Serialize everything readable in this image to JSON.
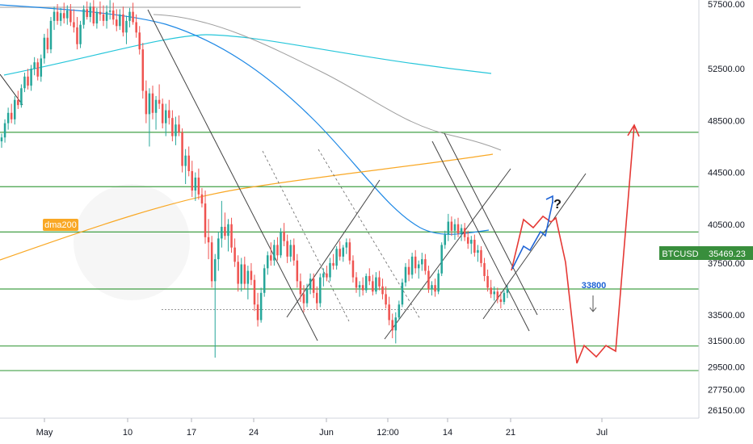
{
  "chart_data": {
    "type": "candlestick",
    "symbol": "BTCUSD",
    "last_price": 35469.23,
    "last_price_label": "35469.23",
    "ylim": [
      25200,
      58300
    ],
    "y_ticks": [
      "57500.00",
      "52500.00",
      "48500.00",
      "44500.00",
      "40500.00",
      "37500.00",
      "33500.00",
      "31500.00",
      "29500.00",
      "27750.00",
      "26150.00"
    ],
    "x_ticks": [
      "May",
      "10",
      "17",
      "24",
      "Jun",
      "12:00",
      "14",
      "21",
      "Jul"
    ],
    "horizontal_levels": [
      47600,
      43400,
      39900,
      35500,
      31100,
      29200
    ],
    "dotted_level": 33900,
    "annotations": {
      "dma_label": "dma200",
      "target_label": "33800",
      "question_mark": "?"
    },
    "colors": {
      "up": "#26a69a",
      "down": "#ef5350",
      "levels": "#43a047",
      "price_badge": "#388e3c",
      "dma200": "#f9a825",
      "ma_blue": "#1e88e5",
      "ma_cyan": "#26c6da",
      "ma_gray": "#9e9e9e",
      "scenario_red": "#e53935",
      "scenario_blue": "#1e63d6"
    },
    "candles": [
      [
        46900,
        47500,
        46400,
        47200
      ],
      [
        47200,
        48600,
        46800,
        48300
      ],
      [
        48300,
        49500,
        47800,
        49100
      ],
      [
        49100,
        49800,
        48300,
        48600
      ],
      [
        48600,
        50400,
        48200,
        50100
      ],
      [
        50100,
        50800,
        49400,
        49700
      ],
      [
        49700,
        51300,
        49500,
        51000
      ],
      [
        51000,
        52200,
        50700,
        51900
      ],
      [
        51900,
        52500,
        50900,
        51200
      ],
      [
        51200,
        52800,
        50800,
        52500
      ],
      [
        52500,
        53400,
        52000,
        53000
      ],
      [
        53000,
        53300,
        51600,
        51900
      ],
      [
        51900,
        53600,
        51500,
        53300
      ],
      [
        53300,
        55200,
        52900,
        54900
      ],
      [
        54900,
        55600,
        53700,
        54000
      ],
      [
        54000,
        56500,
        53700,
        56200
      ],
      [
        56200,
        57300,
        55500,
        56900
      ],
      [
        56900,
        57500,
        55900,
        56200
      ],
      [
        56200,
        57200,
        55800,
        56800
      ],
      [
        56800,
        57600,
        56000,
        56400
      ],
      [
        56400,
        57400,
        55900,
        57000
      ],
      [
        57000,
        57500,
        55800,
        56100
      ],
      [
        56100,
        57100,
        55300,
        55700
      ],
      [
        55700,
        56500,
        54000,
        54400
      ],
      [
        54400,
        56200,
        54100,
        55900
      ],
      [
        55900,
        57400,
        55600,
        57100
      ],
      [
        57100,
        57700,
        56300,
        56500
      ],
      [
        56500,
        57600,
        56100,
        57300
      ],
      [
        57300,
        57800,
        55800,
        56000
      ],
      [
        56000,
        57200,
        55600,
        56900
      ],
      [
        56900,
        57700,
        56200,
        56700
      ],
      [
        56700,
        57400,
        55800,
        56200
      ],
      [
        56200,
        57400,
        55600,
        56900
      ],
      [
        56900,
        57800,
        56300,
        57000
      ],
      [
        57000,
        57600,
        55900,
        56300
      ],
      [
        56300,
        57100,
        55400,
        55800
      ],
      [
        55800,
        57100,
        55500,
        56700
      ],
      [
        56700,
        57300,
        55000,
        55300
      ],
      [
        55300,
        56600,
        54400,
        56200
      ],
      [
        56200,
        57200,
        55700,
        56900
      ],
      [
        56900,
        57600,
        55900,
        56100
      ],
      [
        56100,
        56700,
        54900,
        55300
      ],
      [
        55300,
        55800,
        53600,
        54000
      ],
      [
        54000,
        54500,
        50200,
        50800
      ],
      [
        50800,
        51600,
        48300,
        49000
      ],
      [
        49000,
        51000,
        46500,
        50600
      ],
      [
        50600,
        51200,
        48600,
        49100
      ],
      [
        49100,
        50400,
        47800,
        50100
      ],
      [
        50100,
        51300,
        49400,
        49800
      ],
      [
        49800,
        50200,
        47900,
        48300
      ],
      [
        48300,
        49800,
        47300,
        49300
      ],
      [
        49300,
        50100,
        48200,
        48700
      ],
      [
        48700,
        49300,
        46900,
        47300
      ],
      [
        47300,
        48800,
        46600,
        48200
      ],
      [
        48200,
        48900,
        47300,
        47600
      ],
      [
        47600,
        47900,
        44500,
        45000
      ],
      [
        45000,
        46300,
        43600,
        45800
      ],
      [
        45800,
        46500,
        44200,
        44600
      ],
      [
        44600,
        45400,
        42600,
        43100
      ],
      [
        43100,
        44500,
        42300,
        44100
      ],
      [
        44100,
        44800,
        42400,
        42800
      ],
      [
        42800,
        43300,
        41800,
        42100
      ],
      [
        42100,
        43100,
        39000,
        39500
      ],
      [
        39500,
        40900,
        37800,
        39100
      ],
      [
        39100,
        39600,
        35600,
        36100
      ],
      [
        36100,
        38200,
        30200,
        37800
      ],
      [
        37800,
        39900,
        36900,
        39400
      ],
      [
        39400,
        42300,
        38700,
        40300
      ],
      [
        40300,
        41400,
        39300,
        39600
      ],
      [
        39600,
        40900,
        38400,
        40500
      ],
      [
        40500,
        41000,
        38300,
        38700
      ],
      [
        38700,
        39400,
        37200,
        37600
      ],
      [
        37600,
        38100,
        35300,
        35900
      ],
      [
        35900,
        37900,
        35300,
        37400
      ],
      [
        37400,
        38000,
        35500,
        35900
      ],
      [
        35900,
        37300,
        34700,
        36900
      ],
      [
        36900,
        37500,
        35800,
        36200
      ],
      [
        36200,
        36600,
        33800,
        34300
      ],
      [
        34300,
        35200,
        32600,
        33100
      ],
      [
        33100,
        35600,
        32900,
        35200
      ],
      [
        35200,
        37400,
        34900,
        37100
      ],
      [
        37100,
        38400,
        36600,
        38100
      ],
      [
        38100,
        39100,
        37300,
        37700
      ],
      [
        37700,
        39300,
        37300,
        38900
      ],
      [
        38900,
        39500,
        37700,
        38100
      ],
      [
        38100,
        40200,
        37900,
        39900
      ],
      [
        39900,
        40600,
        38800,
        39200
      ],
      [
        39200,
        39700,
        37500,
        38000
      ],
      [
        38000,
        39300,
        37600,
        38900
      ],
      [
        38900,
        39400,
        37300,
        37700
      ],
      [
        37700,
        38200,
        35600,
        36100
      ],
      [
        36100,
        36700,
        34500,
        35100
      ],
      [
        35100,
        35800,
        33700,
        34400
      ],
      [
        34400,
        35900,
        34100,
        35500
      ],
      [
        35500,
        36700,
        35100,
        36300
      ],
      [
        36300,
        36700,
        34800,
        35200
      ],
      [
        35200,
        35700,
        33900,
        34400
      ],
      [
        34400,
        36700,
        34100,
        36400
      ],
      [
        36400,
        37100,
        35700,
        36700
      ],
      [
        36700,
        37300,
        36100,
        36400
      ],
      [
        36400,
        37900,
        36100,
        37500
      ],
      [
        37500,
        38200,
        37000,
        37300
      ],
      [
        37300,
        38800,
        37000,
        38600
      ],
      [
        38600,
        39200,
        37700,
        38000
      ],
      [
        38000,
        38900,
        37600,
        38700
      ],
      [
        38700,
        39400,
        38200,
        39100
      ],
      [
        39100,
        39400,
        37400,
        37700
      ],
      [
        37700,
        38100,
        36000,
        36400
      ],
      [
        36400,
        36800,
        35200,
        35600
      ],
      [
        35600,
        36100,
        34900,
        35800
      ],
      [
        35800,
        36400,
        35000,
        35400
      ],
      [
        35400,
        36700,
        35200,
        36500
      ],
      [
        36500,
        37100,
        35800,
        36100
      ],
      [
        36100,
        36600,
        35000,
        35300
      ],
      [
        35300,
        36800,
        35100,
        36400
      ],
      [
        36400,
        36900,
        35400,
        35700
      ],
      [
        35700,
        36300,
        34700,
        35100
      ],
      [
        35100,
        35700,
        34000,
        34300
      ],
      [
        34300,
        34900,
        32700,
        33100
      ],
      [
        33100,
        33600,
        31700,
        32300
      ],
      [
        32300,
        33700,
        31300,
        33300
      ],
      [
        33300,
        34600,
        33100,
        34300
      ],
      [
        34300,
        36300,
        34100,
        36000
      ],
      [
        36000,
        37500,
        35700,
        37200
      ],
      [
        37200,
        37800,
        36100,
        36600
      ],
      [
        36600,
        38300,
        36300,
        38000
      ],
      [
        38000,
        38500,
        36700,
        37100
      ],
      [
        37100,
        37700,
        36300,
        37400
      ],
      [
        37400,
        38300,
        36900,
        37800
      ],
      [
        37800,
        38200,
        36600,
        36900
      ],
      [
        36900,
        37300,
        35200,
        35500
      ],
      [
        35500,
        36100,
        35000,
        35800
      ],
      [
        35800,
        36300,
        34900,
        35300
      ],
      [
        35300,
        37000,
        35100,
        36700
      ],
      [
        36700,
        39100,
        36500,
        38900
      ],
      [
        38900,
        40000,
        38600,
        39700
      ],
      [
        39700,
        41300,
        39200,
        40700
      ],
      [
        40700,
        41100,
        39600,
        40000
      ],
      [
        40000,
        40900,
        39300,
        40500
      ],
      [
        40500,
        41000,
        39500,
        39800
      ],
      [
        39800,
        40500,
        39200,
        40200
      ],
      [
        40200,
        40600,
        39200,
        39500
      ],
      [
        39500,
        40000,
        38600,
        39000
      ],
      [
        39000,
        39600,
        38200,
        39300
      ],
      [
        39300,
        39700,
        38000,
        38300
      ],
      [
        38300,
        38900,
        37600,
        38500
      ],
      [
        38500,
        38800,
        37200,
        37500
      ],
      [
        37500,
        37900,
        36100,
        36500
      ],
      [
        36500,
        37000,
        35300,
        35600
      ],
      [
        35600,
        36200,
        34800,
        35100
      ],
      [
        35100,
        35700,
        34600,
        35300
      ],
      [
        35300,
        35600,
        34400,
        34700
      ],
      [
        34700,
        35300,
        34000,
        34500
      ],
      [
        34500,
        35400,
        34300,
        35200
      ],
      [
        35200,
        35800,
        34800,
        35469
      ]
    ]
  }
}
